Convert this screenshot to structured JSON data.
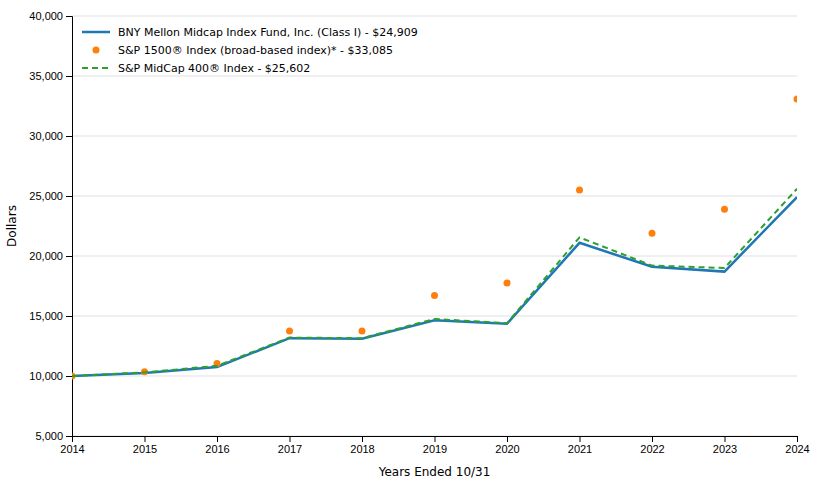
{
  "chart_data": {
    "type": "line",
    "xlabel": "Years Ended 10/31",
    "ylabel": "Dollars",
    "x": [
      2014,
      2015,
      2016,
      2017,
      2018,
      2019,
      2020,
      2021,
      2022,
      2023,
      2024
    ],
    "series": [
      {
        "name": "BNY Mellon Midcap Index Fund, Inc. (Class I) - $24,909",
        "line_style": "solid",
        "marker": "none",
        "values": [
          10000,
          10250,
          10750,
          13150,
          13100,
          14650,
          14350,
          21100,
          19100,
          18700,
          24909
        ]
      },
      {
        "name": "S&P 1500® Index (broad-based index)* - $33,085",
        "line_style": "none",
        "marker": "circle",
        "values": [
          10000,
          10350,
          11050,
          13750,
          13750,
          16700,
          17750,
          25500,
          21900,
          23900,
          33085
        ]
      },
      {
        "name": "S&P MidCap 400® Index - $25,602",
        "line_style": "dashed",
        "marker": "none",
        "values": [
          10000,
          10300,
          10850,
          13200,
          13150,
          14750,
          14400,
          21550,
          19200,
          19000,
          25602
        ]
      }
    ],
    "xlim": [
      2014,
      2024
    ],
    "xticks": [
      2014,
      2015,
      2016,
      2017,
      2018,
      2019,
      2020,
      2021,
      2022,
      2023,
      2024
    ],
    "ylim": [
      5000,
      40000
    ],
    "yticks": [
      {
        "value": 5000,
        "label": "5,000"
      },
      {
        "value": 10000,
        "label": "10,000"
      },
      {
        "value": 15000,
        "label": "15,000"
      },
      {
        "value": 20000,
        "label": "20,000"
      },
      {
        "value": 25000,
        "label": "25,000"
      },
      {
        "value": 30000,
        "label": "30,000"
      },
      {
        "value": 35000,
        "label": "35,000"
      },
      {
        "value": 40000,
        "label": "40,000"
      }
    ],
    "grid": "y",
    "legend": "upper left"
  }
}
